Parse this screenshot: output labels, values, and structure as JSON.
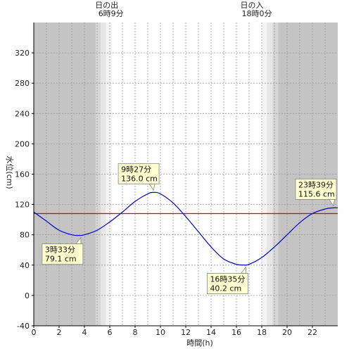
{
  "chart_data": {
    "type": "line",
    "xlabel": "時間(h)",
    "ylabel": "水位(cm)",
    "xlim": [
      0,
      24
    ],
    "ylim": [
      -40,
      360
    ],
    "x_ticks": [
      0,
      2,
      4,
      6,
      8,
      10,
      12,
      14,
      16,
      18,
      20,
      22
    ],
    "y_ticks": [
      -40,
      0,
      40,
      80,
      120,
      160,
      200,
      240,
      280,
      320
    ],
    "reference_line": {
      "value": 108,
      "color": "#e00000"
    },
    "sun": {
      "sunrise": {
        "title": "日の出",
        "time": "6時9分",
        "hour": 6.15
      },
      "sunset": {
        "title": "日の入",
        "time": "18時0分",
        "hour": 18.0
      }
    },
    "night_shading": [
      {
        "from": 0,
        "to": 4.9,
        "shade": "#c4c4c4"
      },
      {
        "from": 4.9,
        "to": 5.3,
        "shade": "#d6d6d6"
      },
      {
        "from": 5.3,
        "to": 5.7,
        "shade": "#e6e6e6"
      },
      {
        "from": 5.7,
        "to": 6.15,
        "shade": "#f3f3f3"
      },
      {
        "from": 18.0,
        "to": 18.4,
        "shade": "#f3f3f3"
      },
      {
        "from": 18.4,
        "to": 18.85,
        "shade": "#e6e6e6"
      },
      {
        "from": 18.85,
        "to": 19.3,
        "shade": "#d6d6d6"
      },
      {
        "from": 19.3,
        "to": 24,
        "shade": "#c4c4c4"
      }
    ],
    "series": [
      {
        "color": "#0000cc",
        "x": [
          0,
          1,
          2,
          3,
          3.55,
          4,
          5,
          6,
          7,
          8,
          9,
          9.45,
          10,
          11,
          12,
          13,
          14,
          15,
          16,
          16.58,
          17,
          18,
          19,
          20,
          21,
          22,
          23,
          23.65,
          24
        ],
        "y": [
          110,
          98,
          86,
          80,
          79.1,
          80,
          86,
          97,
          110,
          124,
          134,
          136,
          134,
          122,
          104,
          84,
          64,
          48,
          41,
          40.2,
          41,
          50,
          64,
          80,
          96,
          108,
          114,
          115.6,
          115.6
        ]
      }
    ],
    "annotations": [
      {
        "time": "3時33分",
        "value": "79.1 cm",
        "x": 3.55,
        "y": 79.1,
        "box_side": "below-left"
      },
      {
        "time": "9時27分",
        "value": "136.0 cm",
        "x": 9.45,
        "y": 136.0,
        "box_side": "above-left"
      },
      {
        "time": "16時35分",
        "value": "40.2 cm",
        "x": 16.58,
        "y": 40.2,
        "box_side": "below-left"
      },
      {
        "time": "23時39分",
        "value": "115.6 cm",
        "x": 23.65,
        "y": 115.6,
        "box_side": "above-left"
      }
    ],
    "colors": {
      "plot_background": "#ffffff",
      "grid": "#9a9a9a",
      "axis": "#000000",
      "annotation_fill": "#ffffd0",
      "annotation_stroke": "#888888"
    }
  }
}
